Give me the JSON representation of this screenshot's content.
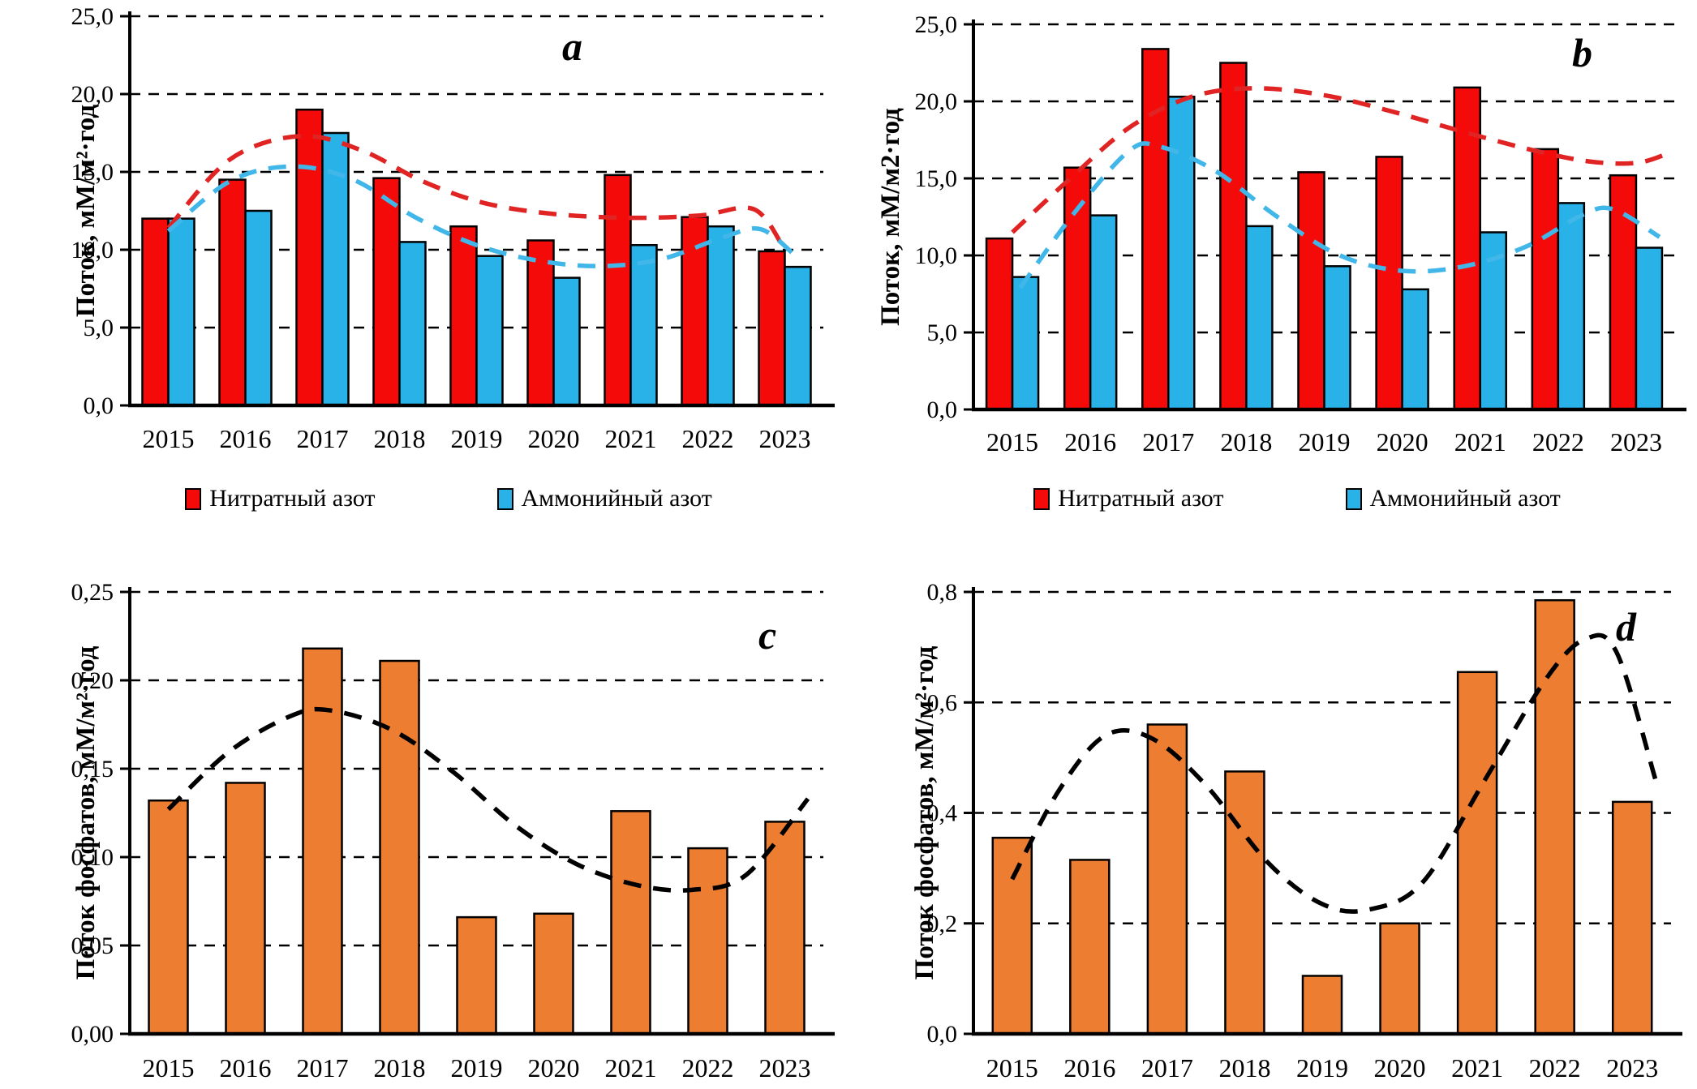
{
  "chart_data": [
    {
      "id": "a",
      "type": "bar",
      "panel_label": "a",
      "ylabel": "Поток, мМ/м²·год",
      "ylim": [
        0,
        25
      ],
      "ytick_values": [
        0,
        5,
        10,
        15,
        20,
        25
      ],
      "ytick_labels": [
        "0,0",
        "5,0",
        "10,0",
        "15,0",
        "20,0",
        "25,0"
      ],
      "categories": [
        "2015",
        "2016",
        "2017",
        "2018",
        "2019",
        "2020",
        "2021",
        "2022",
        "2023"
      ],
      "grid": "dashed-horizontal",
      "legend_position": "bottom",
      "series": [
        {
          "name": "Нитратный азот",
          "color": "#F50A0A",
          "values": [
            12.0,
            14.5,
            19.0,
            14.6,
            11.5,
            10.6,
            14.8,
            12.1,
            9.9
          ]
        },
        {
          "name": "Аммонийный азот",
          "color": "#29B2E8",
          "values": [
            12.0,
            12.5,
            17.5,
            10.5,
            9.6,
            8.2,
            10.3,
            11.5,
            8.9
          ]
        }
      ],
      "trends": [
        {
          "name": "polynomial-trend-nitrate",
          "color": "#E02424",
          "points": [
            [
              2015,
              11.4
            ],
            [
              2015.8,
              15.8
            ],
            [
              2016.7,
              17.3
            ],
            [
              2017.5,
              16.4
            ],
            [
              2018.3,
              14.4
            ],
            [
              2019.1,
              13.0
            ],
            [
              2020.0,
              12.3
            ],
            [
              2021.0,
              12.05
            ],
            [
              2021.9,
              12.2
            ],
            [
              2022.6,
              12.6
            ],
            [
              2023.0,
              10.0
            ]
          ]
        },
        {
          "name": "polynomial-trend-ammonium",
          "color": "#41B6E9",
          "points": [
            [
              2015.0,
              11.2
            ],
            [
              2015.8,
              14.4
            ],
            [
              2016.6,
              15.35
            ],
            [
              2017.4,
              14.5
            ],
            [
              2018.2,
              12.1
            ],
            [
              2019.0,
              10.3
            ],
            [
              2019.8,
              9.3
            ],
            [
              2020.6,
              8.95
            ],
            [
              2021.4,
              9.4
            ],
            [
              2022.2,
              10.8
            ],
            [
              2022.7,
              11.3
            ],
            [
              2023.2,
              9.3
            ]
          ]
        }
      ]
    },
    {
      "id": "b",
      "type": "bar",
      "panel_label": "b",
      "ylabel": "Поток, мМ/м2·год",
      "ylim": [
        0,
        25
      ],
      "ytick_values": [
        0,
        5,
        10,
        15,
        20,
        25
      ],
      "ytick_labels": [
        "0,0",
        "5,0",
        "10,0",
        "15,0",
        "20,0",
        "25,0"
      ],
      "categories": [
        "2015",
        "2016",
        "2017",
        "2018",
        "2019",
        "2020",
        "2021",
        "2022",
        "2023"
      ],
      "grid": "dashed-horizontal",
      "legend_position": "bottom",
      "series": [
        {
          "name": "Нитратный азот",
          "color": "#F50A0A",
          "values": [
            11.1,
            15.7,
            23.4,
            22.5,
            15.4,
            16.4,
            20.9,
            16.9,
            15.2
          ]
        },
        {
          "name": "Аммонийный азот",
          "color": "#29B2E8",
          "values": [
            8.6,
            12.6,
            20.3,
            11.9,
            9.3,
            7.8,
            11.5,
            13.4,
            10.5
          ]
        }
      ],
      "trends": [
        {
          "name": "polynomial-trend-nitrate",
          "color": "#E02424",
          "points": [
            [
              2015.0,
              11.5
            ],
            [
              2015.7,
              14.8
            ],
            [
              2016.5,
              18.3
            ],
            [
              2017.3,
              20.3
            ],
            [
              2018.1,
              20.85
            ],
            [
              2019.0,
              20.4
            ],
            [
              2019.9,
              19.3
            ],
            [
              2020.8,
              18.0
            ],
            [
              2021.7,
              16.8
            ],
            [
              2022.4,
              16.1
            ],
            [
              2023.0,
              16.0
            ],
            [
              2023.4,
              16.6
            ]
          ]
        },
        {
          "name": "polynomial-trend-ammonium",
          "color": "#41B6E9",
          "points": [
            [
              2015.1,
              7.9
            ],
            [
              2015.8,
              12.8
            ],
            [
              2016.5,
              16.8
            ],
            [
              2016.9,
              17.05
            ],
            [
              2017.6,
              15.5
            ],
            [
              2018.4,
              12.5
            ],
            [
              2019.2,
              10.0
            ],
            [
              2020.0,
              9.0
            ],
            [
              2020.8,
              9.3
            ],
            [
              2021.6,
              10.6
            ],
            [
              2022.3,
              12.6
            ],
            [
              2022.7,
              13.0
            ],
            [
              2023.3,
              11.2
            ]
          ]
        }
      ]
    },
    {
      "id": "c",
      "type": "bar",
      "panel_label": "c",
      "ylabel": "Поток фосфатов, мМ/м²·год",
      "ylim": [
        0,
        0.25
      ],
      "ytick_values": [
        0,
        0.05,
        0.1,
        0.15,
        0.2,
        0.25
      ],
      "ytick_labels": [
        "0,00",
        "0,05",
        "0,10",
        "0,15",
        "0,20",
        "0,25"
      ],
      "categories": [
        "2015",
        "2016",
        "2017",
        "2018",
        "2019",
        "2020",
        "2021",
        "2022",
        "2023"
      ],
      "grid": "dashed-horizontal",
      "legend_position": "none",
      "series": [
        {
          "name": "Поток фосфатов",
          "color": "#ED7D31",
          "values": [
            0.132,
            0.142,
            0.218,
            0.211,
            0.066,
            0.068,
            0.126,
            0.105,
            0.12
          ]
        }
      ],
      "trends": [
        {
          "name": "polynomial-trend-phosphate",
          "color": "#000000",
          "points": [
            [
              2015.0,
              0.127
            ],
            [
              2015.8,
              0.16
            ],
            [
              2016.6,
              0.18
            ],
            [
              2017.1,
              0.183
            ],
            [
              2017.9,
              0.172
            ],
            [
              2018.7,
              0.148
            ],
            [
              2019.5,
              0.118
            ],
            [
              2020.3,
              0.096
            ],
            [
              2021.1,
              0.084
            ],
            [
              2021.8,
              0.0815
            ],
            [
              2022.5,
              0.09
            ],
            [
              2023.3,
              0.133
            ]
          ]
        }
      ]
    },
    {
      "id": "d",
      "type": "bar",
      "panel_label": "d",
      "ylabel": "Поток фосфатов, мМ/м²·год",
      "ylim": [
        0,
        0.8
      ],
      "ytick_values": [
        0,
        0.2,
        0.4,
        0.6,
        0.8
      ],
      "ytick_labels": [
        "0,0",
        "0,2",
        "0,4",
        "0,6",
        "0,8"
      ],
      "categories": [
        "2015",
        "2016",
        "2017",
        "2018",
        "2019",
        "2020",
        "2021",
        "2022",
        "2023"
      ],
      "grid": "dashed-horizontal",
      "legend_position": "none",
      "series": [
        {
          "name": "Поток фосфатов",
          "color": "#ED7D31",
          "values": [
            0.355,
            0.315,
            0.56,
            0.475,
            0.105,
            0.2,
            0.655,
            0.785,
            0.42
          ]
        }
      ],
      "trends": [
        {
          "name": "polynomial-trend-phosphate",
          "color": "#000000",
          "points": [
            [
              2015.0,
              0.28
            ],
            [
              2015.6,
              0.44
            ],
            [
              2016.2,
              0.54
            ],
            [
              2016.8,
              0.535
            ],
            [
              2017.5,
              0.45
            ],
            [
              2018.3,
              0.31
            ],
            [
              2019.0,
              0.235
            ],
            [
              2019.6,
              0.225
            ],
            [
              2020.3,
              0.275
            ],
            [
              2021.1,
              0.46
            ],
            [
              2021.9,
              0.645
            ],
            [
              2022.4,
              0.715
            ],
            [
              2022.8,
              0.69
            ],
            [
              2023.3,
              0.46
            ]
          ]
        }
      ]
    }
  ]
}
